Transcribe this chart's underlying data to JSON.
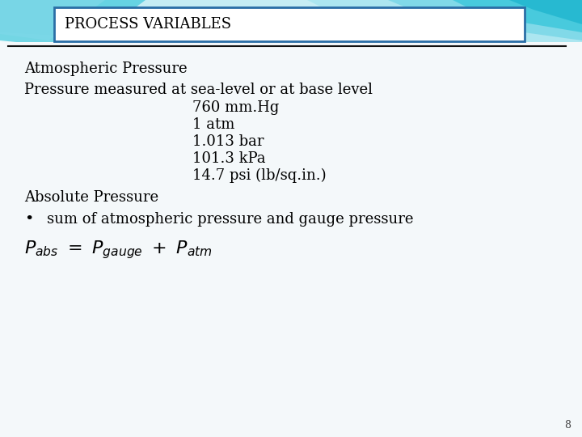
{
  "bg_color": "#f0f8fa",
  "title_box_text": "PROCESS VARIABLES",
  "title_box_color": "#ffffff",
  "title_box_border": "#2a6ea6",
  "title_font_size": 13,
  "body_font_size": 13,
  "formula_font_size": 14,
  "small_font_size": 9,
  "line1": "Atmospheric Pressure",
  "line2": "Pressure measured at sea-level or at base level",
  "indented_lines": [
    "760 mm.Hg",
    "1 atm",
    "1.013 bar",
    "101.3 kPa",
    "14.7 psi (lb/sq.in.)"
  ],
  "line3": "Absolute Pressure",
  "bullet_text": "sum of atmospheric pressure and gauge pressure",
  "page_number": "8",
  "teal_dark": "#1ab3cc",
  "teal_mid": "#3ec8dc",
  "teal_light": "#7dd8e8",
  "teal_pale": "#aae6f0",
  "teal_bg": "#c5eef5"
}
